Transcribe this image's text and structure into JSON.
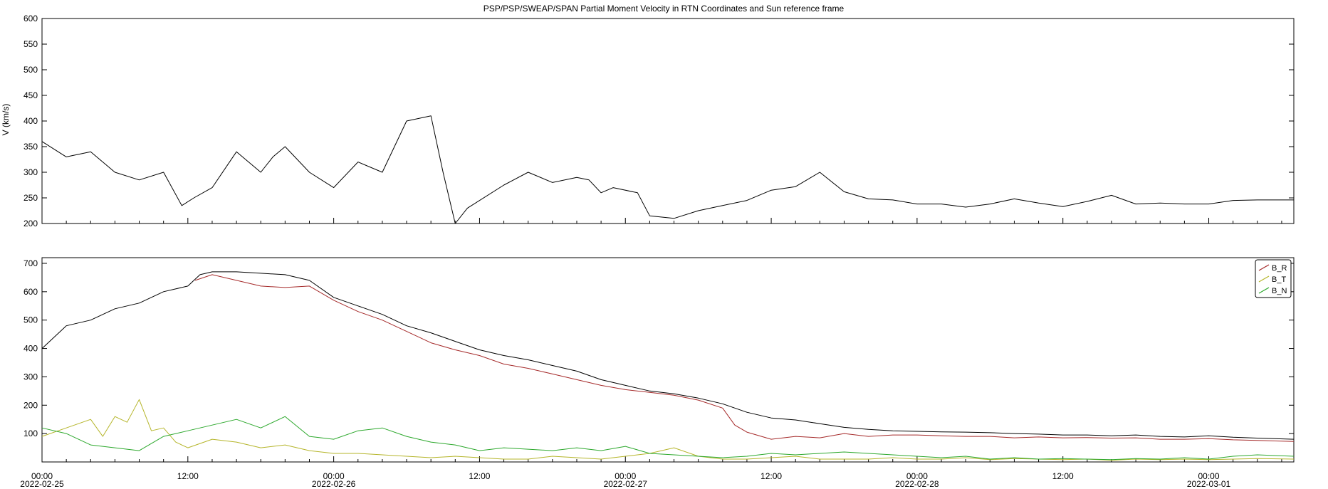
{
  "title": "PSP/PSP/SWEAP/SPAN  Partial Moment Velocity in RTN Coordinates and Sun reference frame",
  "chart_data": [
    {
      "type": "line",
      "ylabel": "V (km/s)",
      "ylim": [
        200,
        600
      ],
      "yticks": [
        200,
        250,
        300,
        350,
        400,
        450,
        500,
        550,
        600
      ],
      "x_range": [
        "2022-02-25 00:00",
        "2022-03-01 07:00"
      ],
      "grid": false,
      "series": [
        {
          "color": "#000000",
          "points": [
            [
              0,
              360
            ],
            [
              2,
              330
            ],
            [
              4,
              340
            ],
            [
              6,
              300
            ],
            [
              8,
              285
            ],
            [
              10,
              300
            ],
            [
              11.5,
              235
            ],
            [
              12.5,
              250
            ],
            [
              14,
              270
            ],
            [
              16,
              340
            ],
            [
              18,
              300
            ],
            [
              19,
              330
            ],
            [
              20,
              350
            ],
            [
              22,
              300
            ],
            [
              24,
              270
            ],
            [
              26,
              320
            ],
            [
              28,
              300
            ],
            [
              30,
              400
            ],
            [
              32,
              410
            ],
            [
              33,
              300
            ],
            [
              34,
              200
            ],
            [
              35,
              230
            ],
            [
              38,
              275
            ],
            [
              40,
              300
            ],
            [
              42,
              280
            ],
            [
              44,
              290
            ],
            [
              45,
              285
            ],
            [
              46,
              260
            ],
            [
              47,
              270
            ],
            [
              49,
              260
            ],
            [
              50,
              215
            ],
            [
              52,
              210
            ],
            [
              54,
              225
            ],
            [
              56,
              235
            ],
            [
              58,
              245
            ],
            [
              60,
              265
            ],
            [
              62,
              272
            ],
            [
              64,
              300
            ],
            [
              66,
              262
            ],
            [
              68,
              248
            ],
            [
              70,
              246
            ],
            [
              72,
              238
            ],
            [
              74,
              238
            ],
            [
              76,
              232
            ],
            [
              78,
              238
            ],
            [
              80,
              248
            ],
            [
              82,
              240
            ],
            [
              84,
              233
            ],
            [
              86,
              243
            ],
            [
              88,
              255
            ],
            [
              90,
              238
            ],
            [
              92,
              240
            ],
            [
              94,
              238
            ],
            [
              96,
              238
            ],
            [
              98,
              245
            ],
            [
              100,
              246
            ],
            [
              103,
              246
            ]
          ]
        }
      ]
    },
    {
      "type": "line",
      "ylabel": "",
      "ylim": [
        0,
        720
      ],
      "yticks": [
        100,
        200,
        300,
        400,
        500,
        600,
        700
      ],
      "x_range": [
        "2022-02-25 00:00",
        "2022-03-01 07:00"
      ],
      "grid": false,
      "xticks": [
        {
          "time": "00:00",
          "date": "2022-02-25"
        },
        {
          "time": "12:00",
          "date": ""
        },
        {
          "time": "00:00",
          "date": "2022-02-26"
        },
        {
          "time": "12:00",
          "date": ""
        },
        {
          "time": "00:00",
          "date": "2022-02-27"
        },
        {
          "time": "12:00",
          "date": ""
        },
        {
          "time": "00:00",
          "date": "2022-02-28"
        },
        {
          "time": "12:00",
          "date": ""
        },
        {
          "time": "00:00",
          "date": "2022-03-01"
        }
      ],
      "legend_position": "top-right",
      "series": [
        {
          "name": "",
          "color": "#000000",
          "points": [
            [
              0,
              400
            ],
            [
              2,
              480
            ],
            [
              4,
              500
            ],
            [
              6,
              540
            ],
            [
              8,
              560
            ],
            [
              10,
              600
            ],
            [
              12,
              620
            ],
            [
              13,
              660
            ],
            [
              14,
              670
            ],
            [
              16,
              670
            ],
            [
              18,
              665
            ],
            [
              20,
              660
            ],
            [
              22,
              640
            ],
            [
              24,
              580
            ],
            [
              26,
              550
            ],
            [
              28,
              520
            ],
            [
              30,
              480
            ],
            [
              32,
              455
            ],
            [
              34,
              425
            ],
            [
              36,
              395
            ],
            [
              38,
              375
            ],
            [
              40,
              360
            ],
            [
              42,
              340
            ],
            [
              44,
              320
            ],
            [
              46,
              290
            ],
            [
              48,
              270
            ],
            [
              50,
              250
            ],
            [
              52,
              240
            ],
            [
              54,
              225
            ],
            [
              56,
              205
            ],
            [
              58,
              175
            ],
            [
              60,
              155
            ],
            [
              62,
              148
            ],
            [
              64,
              135
            ],
            [
              66,
              122
            ],
            [
              68,
              115
            ],
            [
              70,
              110
            ],
            [
              72,
              108
            ],
            [
              74,
              106
            ],
            [
              76,
              105
            ],
            [
              78,
              103
            ],
            [
              80,
              100
            ],
            [
              82,
              98
            ],
            [
              84,
              95
            ],
            [
              86,
              95
            ],
            [
              88,
              92
            ],
            [
              90,
              95
            ],
            [
              92,
              90
            ],
            [
              94,
              88
            ],
            [
              96,
              92
            ],
            [
              98,
              87
            ],
            [
              100,
              84
            ],
            [
              103,
              80
            ]
          ]
        },
        {
          "name": "B_R",
          "color": "#a52a2a",
          "points": [
            [
              12.6,
              640
            ],
            [
              14,
              660
            ],
            [
              16,
              640
            ],
            [
              18,
              620
            ],
            [
              20,
              615
            ],
            [
              22,
              620
            ],
            [
              24,
              570
            ],
            [
              26,
              530
            ],
            [
              28,
              500
            ],
            [
              30,
              460
            ],
            [
              32,
              420
            ],
            [
              34,
              395
            ],
            [
              36,
              375
            ],
            [
              38,
              345
            ],
            [
              40,
              330
            ],
            [
              42,
              310
            ],
            [
              44,
              290
            ],
            [
              46,
              270
            ],
            [
              48,
              255
            ],
            [
              50,
              245
            ],
            [
              52,
              235
            ],
            [
              54,
              218
            ],
            [
              56,
              190
            ],
            [
              57,
              130
            ],
            [
              58,
              105
            ],
            [
              60,
              80
            ],
            [
              62,
              90
            ],
            [
              64,
              85
            ],
            [
              66,
              100
            ],
            [
              68,
              90
            ],
            [
              70,
              95
            ],
            [
              72,
              95
            ],
            [
              74,
              92
            ],
            [
              76,
              90
            ],
            [
              78,
              90
            ],
            [
              80,
              85
            ],
            [
              82,
              88
            ],
            [
              84,
              85
            ],
            [
              86,
              86
            ],
            [
              88,
              84
            ],
            [
              90,
              85
            ],
            [
              92,
              80
            ],
            [
              94,
              80
            ],
            [
              96,
              82
            ],
            [
              98,
              78
            ],
            [
              100,
              76
            ],
            [
              103,
              72
            ]
          ]
        },
        {
          "name": "B_T",
          "color": "#b5b52a",
          "points": [
            [
              0,
              90
            ],
            [
              2,
              120
            ],
            [
              4,
              150
            ],
            [
              5,
              90
            ],
            [
              6,
              160
            ],
            [
              7,
              140
            ],
            [
              8,
              220
            ],
            [
              9,
              110
            ],
            [
              10,
              120
            ],
            [
              11,
              70
            ],
            [
              12,
              50
            ],
            [
              14,
              80
            ],
            [
              16,
              70
            ],
            [
              18,
              50
            ],
            [
              20,
              60
            ],
            [
              22,
              40
            ],
            [
              24,
              30
            ],
            [
              26,
              30
            ],
            [
              28,
              25
            ],
            [
              30,
              20
            ],
            [
              32,
              15
            ],
            [
              34,
              20
            ],
            [
              36,
              15
            ],
            [
              38,
              10
            ],
            [
              40,
              10
            ],
            [
              42,
              20
            ],
            [
              44,
              15
            ],
            [
              46,
              10
            ],
            [
              48,
              20
            ],
            [
              50,
              30
            ],
            [
              52,
              50
            ],
            [
              54,
              20
            ],
            [
              56,
              10
            ],
            [
              58,
              10
            ],
            [
              60,
              15
            ],
            [
              62,
              20
            ],
            [
              64,
              10
            ],
            [
              66,
              10
            ],
            [
              68,
              10
            ],
            [
              70,
              15
            ],
            [
              72,
              10
            ],
            [
              74,
              10
            ],
            [
              76,
              15
            ],
            [
              78,
              8
            ],
            [
              80,
              12
            ],
            [
              82,
              10
            ],
            [
              84,
              8
            ],
            [
              86,
              10
            ],
            [
              88,
              6
            ],
            [
              90,
              10
            ],
            [
              92,
              8
            ],
            [
              94,
              10
            ],
            [
              96,
              8
            ],
            [
              98,
              10
            ],
            [
              100,
              12
            ],
            [
              103,
              10
            ]
          ]
        },
        {
          "name": "B_N",
          "color": "#2ca82c",
          "points": [
            [
              0,
              120
            ],
            [
              2,
              100
            ],
            [
              4,
              60
            ],
            [
              6,
              50
            ],
            [
              8,
              40
            ],
            [
              10,
              90
            ],
            [
              12,
              110
            ],
            [
              14,
              130
            ],
            [
              16,
              150
            ],
            [
              18,
              120
            ],
            [
              20,
              160
            ],
            [
              22,
              90
            ],
            [
              24,
              80
            ],
            [
              26,
              110
            ],
            [
              28,
              120
            ],
            [
              30,
              90
            ],
            [
              32,
              70
            ],
            [
              34,
              60
            ],
            [
              36,
              40
            ],
            [
              38,
              50
            ],
            [
              40,
              45
            ],
            [
              42,
              40
            ],
            [
              44,
              50
            ],
            [
              46,
              40
            ],
            [
              48,
              55
            ],
            [
              50,
              30
            ],
            [
              52,
              25
            ],
            [
              54,
              20
            ],
            [
              56,
              15
            ],
            [
              58,
              20
            ],
            [
              60,
              30
            ],
            [
              62,
              25
            ],
            [
              64,
              30
            ],
            [
              66,
              35
            ],
            [
              68,
              30
            ],
            [
              70,
              25
            ],
            [
              72,
              20
            ],
            [
              74,
              15
            ],
            [
              76,
              20
            ],
            [
              78,
              10
            ],
            [
              80,
              15
            ],
            [
              82,
              10
            ],
            [
              84,
              12
            ],
            [
              86,
              10
            ],
            [
              88,
              8
            ],
            [
              90,
              12
            ],
            [
              92,
              10
            ],
            [
              94,
              15
            ],
            [
              96,
              10
            ],
            [
              98,
              20
            ],
            [
              100,
              25
            ],
            [
              103,
              20
            ]
          ]
        }
      ]
    }
  ]
}
